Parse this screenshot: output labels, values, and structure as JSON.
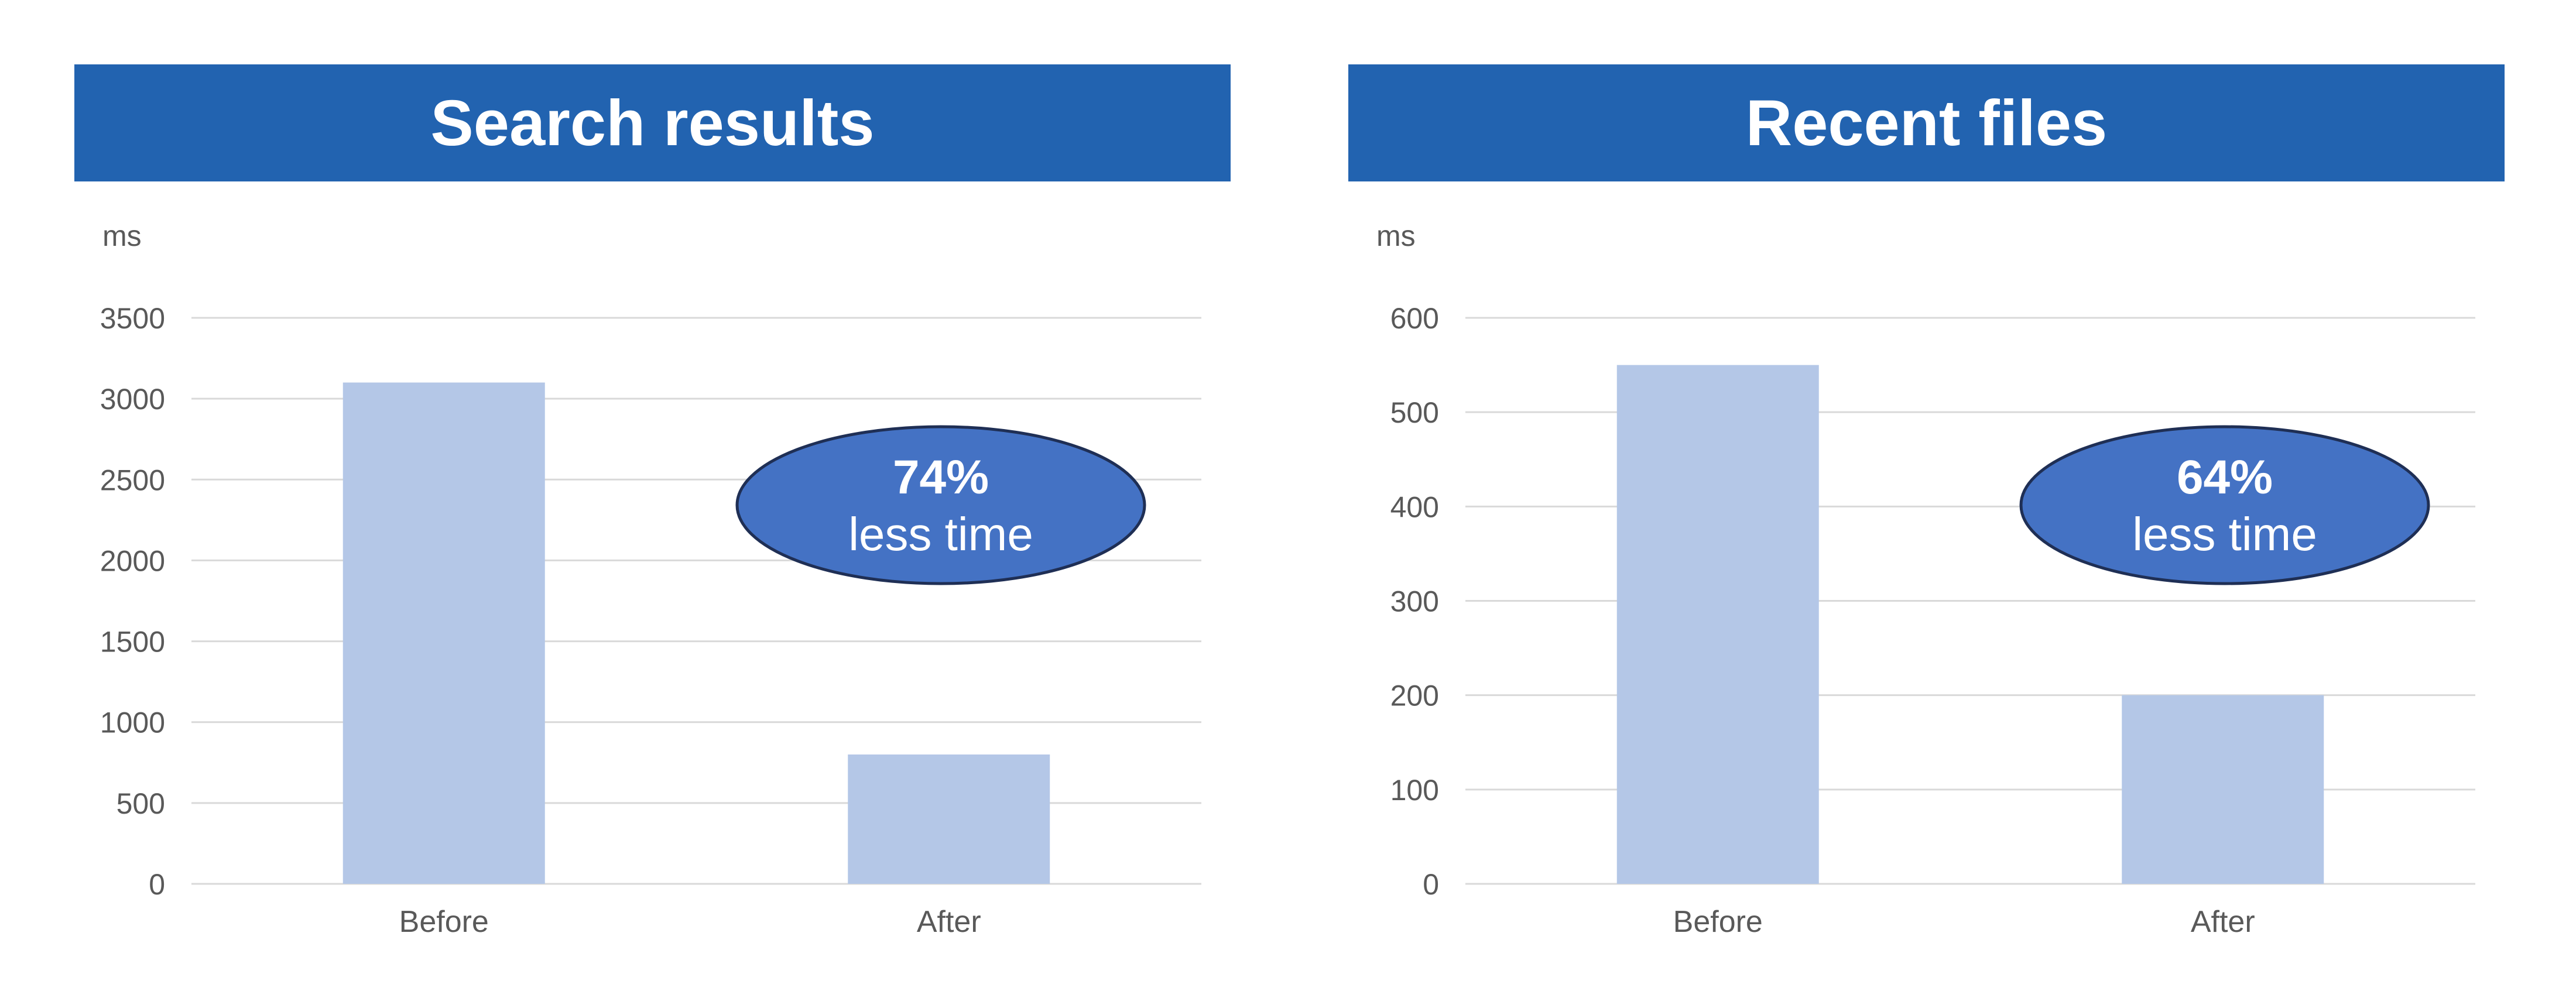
{
  "chart_data": [
    {
      "type": "bar",
      "title": "Search results",
      "ylabel": "ms",
      "xlabel": "",
      "categories": [
        "Before",
        "After"
      ],
      "values": [
        3100,
        800
      ],
      "ylim": [
        0,
        3500
      ],
      "yticks": [
        "0",
        "500",
        "1000",
        "1500",
        "2000",
        "2500",
        "3000",
        "3500"
      ],
      "grid": true,
      "bar_color": "#b4c7e7",
      "callout": {
        "value": "74%",
        "text": "less time",
        "color": "#4472c4"
      }
    },
    {
      "type": "bar",
      "title": "Recent files",
      "ylabel": "ms",
      "xlabel": "",
      "categories": [
        "Before",
        "After"
      ],
      "values": [
        550,
        200
      ],
      "ylim": [
        0,
        600
      ],
      "yticks": [
        "0",
        "100",
        "200",
        "300",
        "400",
        "500",
        "600"
      ],
      "grid": true,
      "bar_color": "#b4c7e7",
      "callout": {
        "value": "64%",
        "text": "less time",
        "color": "#4472c4"
      }
    }
  ],
  "colors": {
    "title_bar": "#2263b0",
    "grid": "#d9d9d9",
    "axis_text": "#595959",
    "callout_border": "#1f2f55"
  }
}
